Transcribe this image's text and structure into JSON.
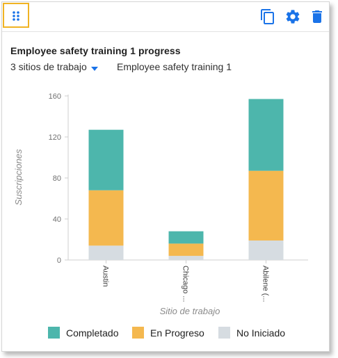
{
  "widget": {
    "title": "Employee safety training 1 progress",
    "site_filter": "3 sitios de trabajo",
    "course_filter": "Employee safety training 1"
  },
  "toolbar": {
    "icons": [
      "drag-handle-icon",
      "copy-icon",
      "gear-icon",
      "trash-icon"
    ]
  },
  "colors": {
    "completed": "#4db6ac",
    "in_progress": "#f4b84f",
    "not_started": "#d6dce1",
    "accent": "#1a73e8",
    "highlight": "#f0b323"
  },
  "chart_data": {
    "type": "bar",
    "stacked": true,
    "categories": [
      "Austin",
      "Chicago ...",
      "Abilene (..."
    ],
    "series": [
      {
        "name": "No Iniciado",
        "values": [
          14,
          4,
          19
        ]
      },
      {
        "name": "En Progreso",
        "values": [
          54,
          12,
          68
        ]
      },
      {
        "name": "Completado",
        "values": [
          59,
          12,
          70
        ]
      }
    ],
    "xlabel": "Sitio de trabajo",
    "ylabel": "Suscripciones",
    "ylim": [
      0,
      160
    ],
    "yticks": [
      0,
      40,
      80,
      120,
      160
    ],
    "grid": false,
    "legend_position": "bottom",
    "legend": [
      {
        "label": "Completado",
        "series": "Completado"
      },
      {
        "label": "En Progreso",
        "series": "En Progreso"
      },
      {
        "label": "No Iniciado",
        "series": "No Iniciado"
      }
    ]
  }
}
